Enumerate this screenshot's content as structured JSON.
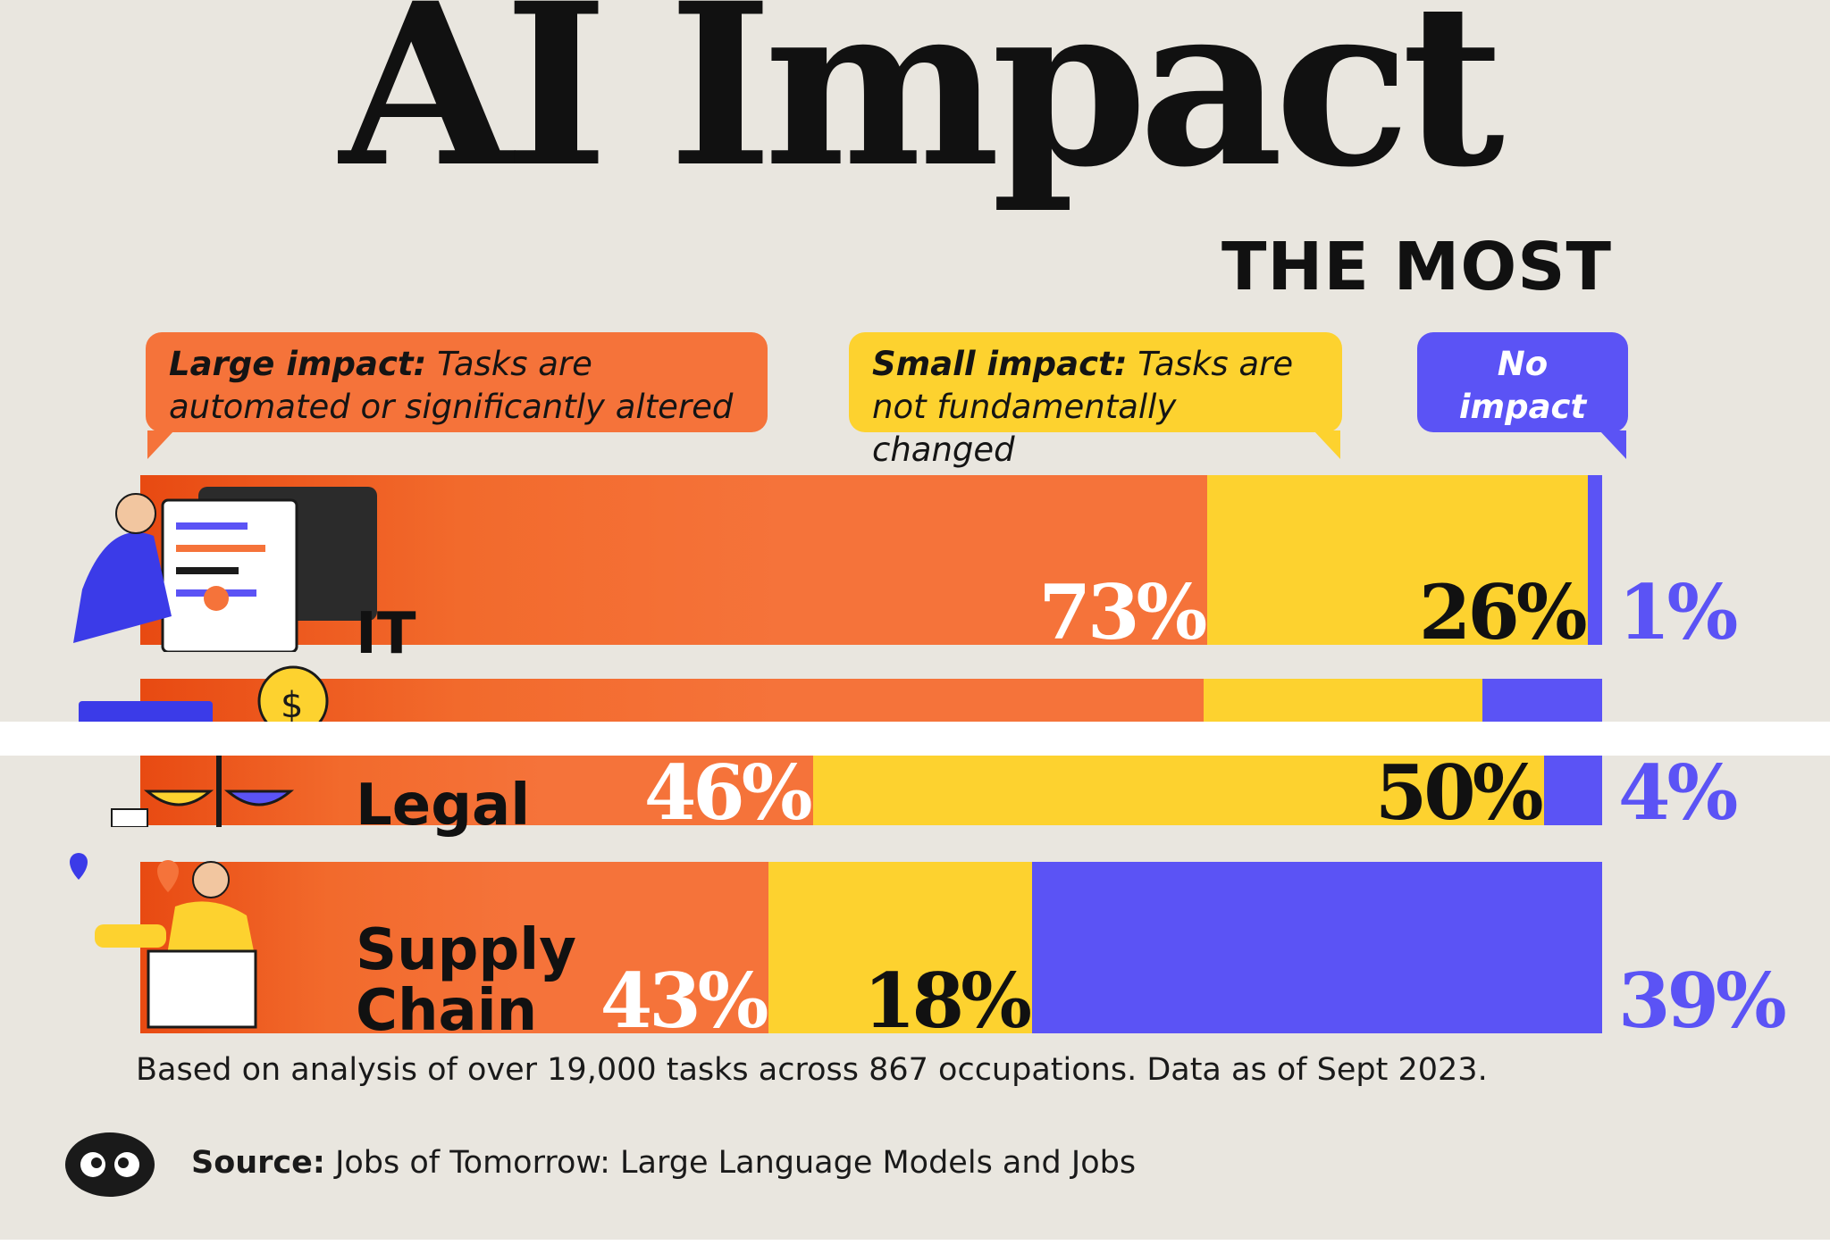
{
  "title": "AI Impact",
  "subtitle": "THE MOST",
  "legend": {
    "large": {
      "label": "Large impact:",
      "text": "Tasks are automated or significantly altered",
      "color": "#f5733a"
    },
    "small": {
      "label": "Small impact:",
      "text": "Tasks are not fundamentally changed",
      "color": "#fdd22f"
    },
    "none": {
      "label": "No impact",
      "color": "#5b53f5"
    }
  },
  "chart_data": {
    "type": "bar",
    "stacked": true,
    "orientation": "horizontal",
    "categories": [
      "IT",
      "",
      "Legal",
      "Supply Chain"
    ],
    "series": [
      {
        "name": "Large impact",
        "values": [
          73,
          80,
          46,
          43
        ],
        "color": "#f5733a"
      },
      {
        "name": "Small impact",
        "values": [
          26,
          21,
          50,
          18
        ],
        "color": "#fdd22f"
      },
      {
        "name": "No impact",
        "values": [
          1,
          9,
          4,
          39
        ],
        "color": "#5b53f5"
      }
    ],
    "labels": [
      {
        "large": "73%",
        "small": "26%",
        "none": "1%"
      },
      {
        "large": "",
        "small": "",
        "none": ""
      },
      {
        "large": "46%",
        "small": "50%",
        "none": "4%"
      },
      {
        "large": "43%",
        "small": "18%",
        "none": "39%"
      }
    ]
  },
  "note": "Based on analysis of over 19,000 tasks across 867 occupations. Data as of Sept 2023.",
  "source": {
    "label": "Source:",
    "text": "Jobs of Tomorrow: Large Language Models and Jobs"
  }
}
